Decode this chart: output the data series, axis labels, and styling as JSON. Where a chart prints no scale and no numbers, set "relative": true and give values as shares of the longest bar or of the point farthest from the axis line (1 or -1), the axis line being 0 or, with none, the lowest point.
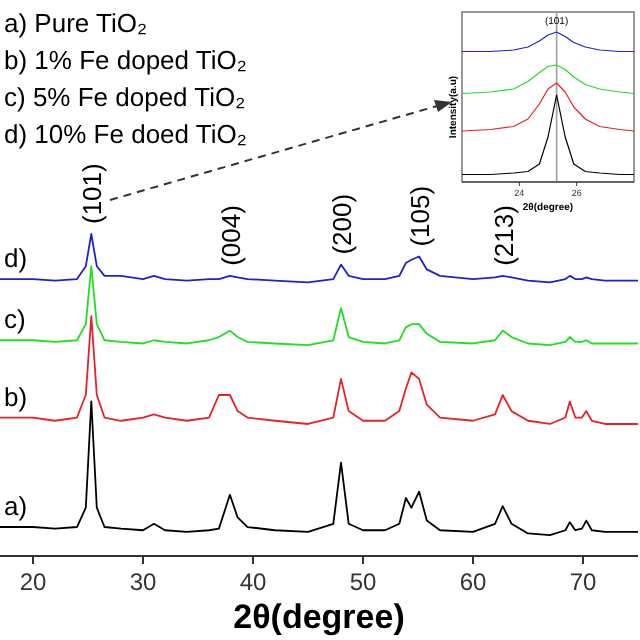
{
  "chart_data": [
    {
      "type": "line",
      "relative": true,
      "xlabel": "2θ(degree)",
      "xlim": [
        17,
        75
      ],
      "xticks": [
        20,
        30,
        40,
        50,
        60,
        70
      ],
      "tick_labels": "x",
      "x": [
        17,
        20,
        22,
        24,
        24.8,
        25.3,
        25.8,
        26.5,
        28,
        30,
        31,
        32,
        34,
        36,
        36.9,
        37.9,
        38.6,
        39.5,
        42,
        45,
        47.3,
        48,
        48.7,
        50,
        52,
        53.3,
        53.9,
        54.4,
        55.1,
        55.8,
        57,
        60,
        62,
        62.7,
        63.5,
        65,
        67,
        68.4,
        68.8,
        69.3,
        69.9,
        70.3,
        70.8,
        72,
        75
      ],
      "series": [
        {
          "name": "a)",
          "color": "#000000",
          "values": [
            0.09,
            0.09,
            0.085,
            0.09,
            0.15,
            0.48,
            0.15,
            0.09,
            0.085,
            0.08,
            0.1,
            0.08,
            0.075,
            0.08,
            0.085,
            0.19,
            0.12,
            0.09,
            0.08,
            0.075,
            0.1,
            0.29,
            0.1,
            0.08,
            0.08,
            0.1,
            0.18,
            0.15,
            0.2,
            0.11,
            0.08,
            0.075,
            0.1,
            0.155,
            0.1,
            0.07,
            0.065,
            0.08,
            0.105,
            0.08,
            0.085,
            0.11,
            0.08,
            0.075,
            0.075
          ]
        },
        {
          "name": "b)",
          "color": "#e8202a",
          "values": [
            0.43,
            0.43,
            0.42,
            0.43,
            0.5,
            0.745,
            0.5,
            0.43,
            0.42,
            0.43,
            0.44,
            0.43,
            0.42,
            0.43,
            0.5,
            0.5,
            0.45,
            0.43,
            0.42,
            0.41,
            0.43,
            0.55,
            0.45,
            0.42,
            0.42,
            0.45,
            0.52,
            0.57,
            0.55,
            0.47,
            0.43,
            0.42,
            0.44,
            0.5,
            0.45,
            0.42,
            0.41,
            0.43,
            0.48,
            0.43,
            0.43,
            0.45,
            0.42,
            0.41,
            0.41
          ]
        },
        {
          "name": "c)",
          "color": "#22dd22",
          "values": [
            0.67,
            0.67,
            0.665,
            0.67,
            0.72,
            0.9,
            0.72,
            0.67,
            0.665,
            0.66,
            0.67,
            0.665,
            0.66,
            0.67,
            0.68,
            0.7,
            0.68,
            0.665,
            0.66,
            0.655,
            0.67,
            0.77,
            0.68,
            0.665,
            0.66,
            0.67,
            0.71,
            0.72,
            0.72,
            0.69,
            0.665,
            0.66,
            0.67,
            0.7,
            0.68,
            0.66,
            0.655,
            0.665,
            0.68,
            0.665,
            0.665,
            0.67,
            0.66,
            0.66,
            0.66
          ]
        },
        {
          "name": "d)",
          "color": "#2020d0",
          "values": [
            0.86,
            0.86,
            0.855,
            0.86,
            0.9,
            1.0,
            0.9,
            0.87,
            0.87,
            0.86,
            0.87,
            0.86,
            0.855,
            0.86,
            0.86,
            0.87,
            0.865,
            0.86,
            0.855,
            0.85,
            0.86,
            0.905,
            0.87,
            0.86,
            0.86,
            0.87,
            0.91,
            0.92,
            0.93,
            0.89,
            0.87,
            0.86,
            0.865,
            0.87,
            0.865,
            0.855,
            0.85,
            0.86,
            0.87,
            0.86,
            0.86,
            0.865,
            0.86,
            0.855,
            0.855
          ]
        }
      ],
      "annotations": [
        "a) Pure TiO₂",
        "b) 1% Fe doped TiO₂",
        "c)  5% Fe doped TiO₂",
        "d) 10% Fe doed TiO₂",
        {
          "text": "(101)",
          "x": 25.3,
          "y": 1.0
        },
        {
          "text": "(004)",
          "x": 37.9,
          "y": 0.87
        },
        {
          "text": "(200)",
          "x": 48,
          "y": 0.905
        },
        {
          "text": "(105)",
          "x": 55.1,
          "y": 0.93
        },
        {
          "text": "(213)",
          "x": 62.7,
          "y": 0.87
        }
      ]
    },
    {
      "type": "line",
      "relative": true,
      "xlabel": "2θ(degree)",
      "ylabel": "Intensity(a.u)",
      "xlim": [
        22,
        28
      ],
      "xticks": [
        24,
        26
      ],
      "tick_labels": "x",
      "x": [
        22,
        23,
        23.8,
        24.3,
        24.7,
        25,
        25.3,
        25.6,
        25.9,
        26.3,
        26.8,
        27.5,
        28
      ],
      "ref_lines": [
        {
          "axis": "x",
          "value": 25.3,
          "color": "#a0a0a0"
        }
      ],
      "series": [
        {
          "color": "#000000",
          "values": [
            0.05,
            0.05,
            0.06,
            0.07,
            0.12,
            0.3,
            0.58,
            0.3,
            0.12,
            0.07,
            0.06,
            0.05,
            0.05
          ]
        },
        {
          "color": "#e8202a",
          "values": [
            0.34,
            0.35,
            0.37,
            0.42,
            0.52,
            0.62,
            0.66,
            0.6,
            0.5,
            0.42,
            0.37,
            0.35,
            0.34
          ]
        },
        {
          "color": "#22dd22",
          "values": [
            0.59,
            0.6,
            0.62,
            0.67,
            0.73,
            0.77,
            0.78,
            0.75,
            0.7,
            0.65,
            0.62,
            0.6,
            0.59
          ]
        },
        {
          "color": "#2020d0",
          "values": [
            0.87,
            0.87,
            0.88,
            0.9,
            0.94,
            0.98,
            1.0,
            0.97,
            0.93,
            0.9,
            0.88,
            0.87,
            0.87
          ]
        }
      ],
      "annotations": [
        {
          "text": "(101)",
          "x": 25.3,
          "y": 1.0
        }
      ]
    }
  ]
}
